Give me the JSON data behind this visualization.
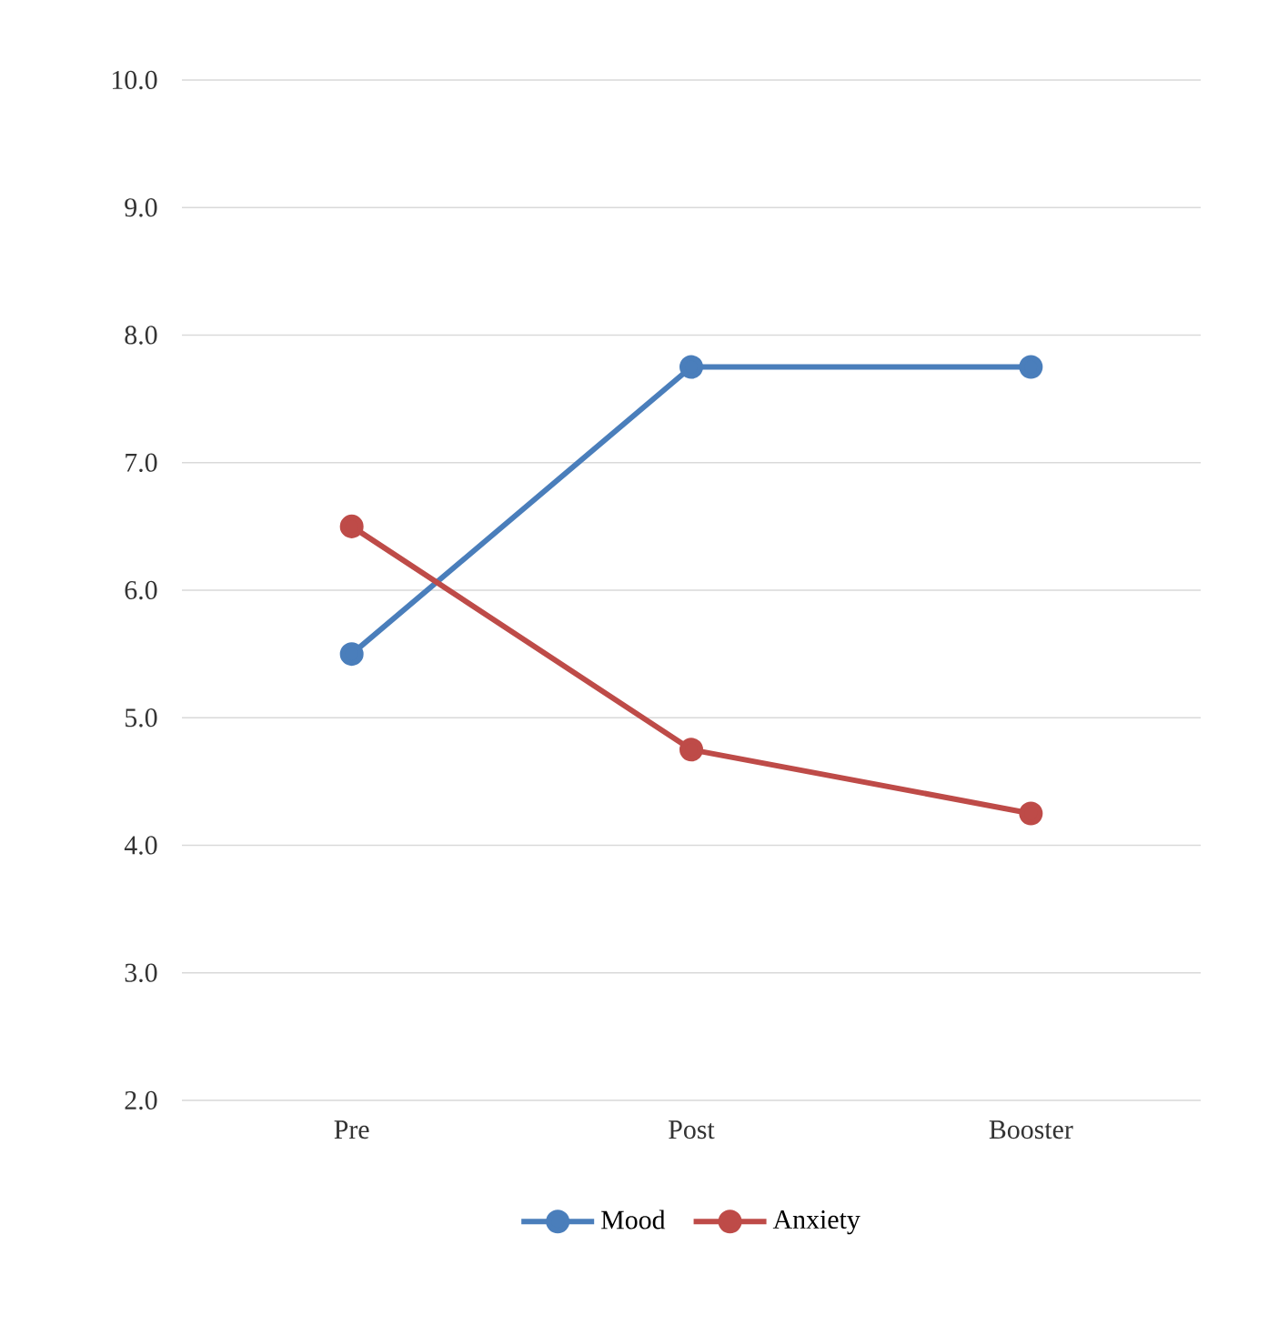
{
  "chart_data": {
    "type": "line",
    "categories": [
      "Pre",
      "Post",
      "Booster"
    ],
    "series": [
      {
        "name": "Mood",
        "color": "#4a7ebb",
        "values": [
          5.5,
          7.75,
          7.75
        ]
      },
      {
        "name": "Anxiety",
        "color": "#be4b48",
        "values": [
          6.5,
          4.75,
          4.25
        ]
      }
    ],
    "ylim": [
      2,
      10
    ],
    "yticks": [
      {
        "value": 2,
        "label": "2.0"
      },
      {
        "value": 3,
        "label": "3.0"
      },
      {
        "value": 4,
        "label": "4.0"
      },
      {
        "value": 5,
        "label": "5.0"
      },
      {
        "value": 6,
        "label": "6.0"
      },
      {
        "value": 7,
        "label": "7.0"
      },
      {
        "value": 8,
        "label": "8.0"
      },
      {
        "value": 9,
        "label": "9.0"
      },
      {
        "value": 10,
        "label": "10.0"
      }
    ],
    "grid": "y",
    "legend": "bottom",
    "marker": "circle",
    "line_style": "solid"
  }
}
